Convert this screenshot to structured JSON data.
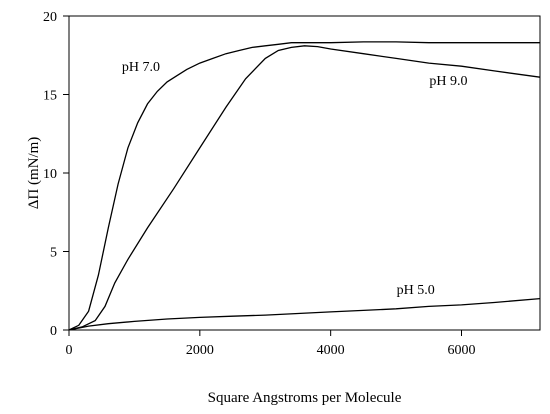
{
  "chart_data": {
    "type": "line",
    "xlabel": "Square Angstroms per Molecule",
    "ylabel": "ΔΠ (mN/m)",
    "xlim": [
      0,
      7200
    ],
    "ylim": [
      0,
      20
    ],
    "xticks": [
      0,
      2000,
      4000,
      6000
    ],
    "yticks": [
      0,
      5,
      10,
      15,
      20
    ],
    "grid": false,
    "legend": "inline labels",
    "series": [
      {
        "name": "pH 7.0",
        "label_at": [
          1100,
          16.5
        ],
        "x": [
          0,
          150,
          300,
          450,
          600,
          750,
          900,
          1050,
          1200,
          1350,
          1500,
          1650,
          1800,
          2000,
          2200,
          2400,
          2600,
          2800,
          3000,
          3200,
          3400,
          3600,
          3800,
          4000,
          4500,
          5000,
          5500,
          6000,
          6500,
          7200
        ],
        "y": [
          0,
          0.3,
          1.2,
          3.5,
          6.5,
          9.3,
          11.6,
          13.2,
          14.4,
          15.2,
          15.8,
          16.2,
          16.6,
          17.0,
          17.3,
          17.6,
          17.8,
          18.0,
          18.1,
          18.2,
          18.3,
          18.3,
          18.3,
          18.3,
          18.35,
          18.35,
          18.3,
          18.3,
          18.3,
          18.3
        ]
      },
      {
        "name": "pH 9.0",
        "label_at": [
          5800,
          15.6
        ],
        "x": [
          0,
          200,
          400,
          550,
          700,
          900,
          1200,
          1600,
          2000,
          2400,
          2700,
          3000,
          3200,
          3400,
          3600,
          3800,
          4000,
          4500,
          5000,
          5500,
          6000,
          6500,
          7200
        ],
        "y": [
          0,
          0.2,
          0.6,
          1.5,
          3.0,
          4.5,
          6.5,
          9.0,
          11.6,
          14.2,
          16.0,
          17.3,
          17.8,
          18.0,
          18.1,
          18.05,
          17.9,
          17.6,
          17.3,
          17.0,
          16.8,
          16.5,
          16.1
        ]
      },
      {
        "name": "pH 5.0",
        "label_at": [
          5300,
          2.3
        ],
        "x": [
          0,
          300,
          600,
          1000,
          1500,
          2000,
          2500,
          3000,
          3500,
          4000,
          4500,
          5000,
          5500,
          6000,
          6500,
          7200
        ],
        "y": [
          0,
          0.25,
          0.4,
          0.55,
          0.7,
          0.8,
          0.88,
          0.95,
          1.05,
          1.15,
          1.25,
          1.35,
          1.5,
          1.6,
          1.75,
          2.0
        ]
      }
    ]
  }
}
